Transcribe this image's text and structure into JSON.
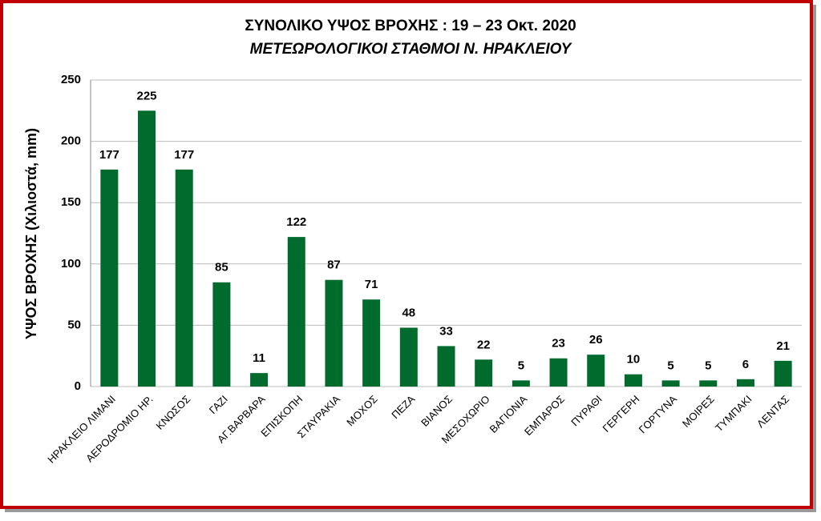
{
  "chart_data": {
    "type": "bar",
    "title": "ΣΥΝΟΛΙΚΟ ΥΨΟΣ ΒΡΟΧΗΣ  :  19 – 23 Οκτ. 2020",
    "subtitle": "ΜΕΤΕΩΡΟΛΟΓΙΚΟΙ ΣΤΑΘΜΟΙ  Ν. ΗΡΑΚΛΕΙΟΥ",
    "y_label": "ΥΨΟΣ ΒΡΟΧΗΣ  (Χιλιοστά, mm)",
    "categories": [
      "ΗΡΑΚΛΕΙΟ ΛΙΜΑΝΙ",
      "ΑΕΡΟΔΡΟΜΙΟ ΗΡ.",
      "ΚΝΩΣΟΣ",
      "ΓΑΖΙ",
      "ΑΓ.ΒΑΡΒΑΡΑ",
      "ΕΠΙΣΚΟΠΗ",
      "ΣΤΑΥΡΑΚΙΑ",
      "ΜΟΧΟΣ",
      "ΠΕΖΑ",
      "ΒΙΑΝΟΣ",
      "ΜΕΣΟΧΩΡΙΟ",
      "ΒΑΓΙΟΝΙΑ",
      "ΕΜΠΑΡΟΣ",
      "ΠΥΡΑΘΙ",
      "ΓΕΡΓΕΡΗ",
      "ΓΟΡΤΥΝΑ",
      "ΜΟΙΡΕΣ",
      "ΤΥΜΠΑΚΙ",
      "ΛΕΝΤΑΣ"
    ],
    "values": [
      177,
      225,
      177,
      85,
      11,
      122,
      87,
      71,
      48,
      33,
      22,
      5,
      23,
      26,
      10,
      5,
      5,
      6,
      21
    ],
    "color": "#006b2d",
    "ylim": [
      0,
      250
    ],
    "yticks": [
      0,
      50,
      100,
      150,
      200,
      250
    ],
    "grid": true
  }
}
